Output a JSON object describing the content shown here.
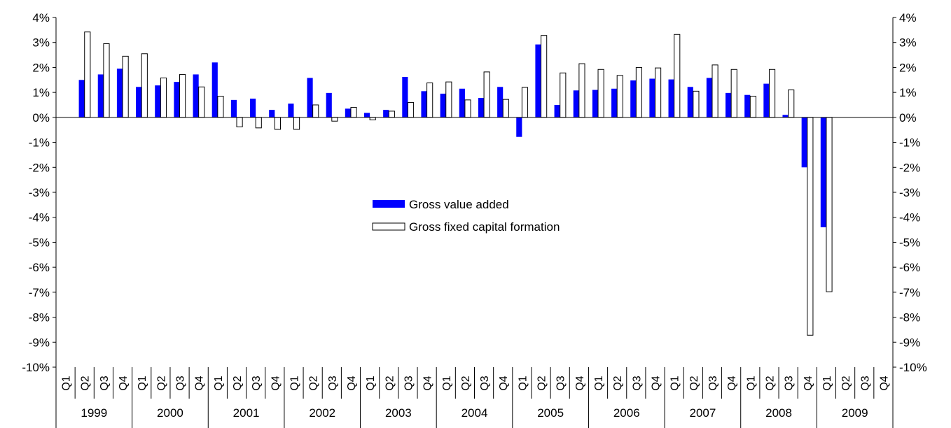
{
  "chart_data": {
    "type": "bar",
    "title": "",
    "xlabel": "",
    "ylabel": "",
    "ylim": [
      -10,
      4
    ],
    "y_ticks": [
      4,
      3,
      2,
      1,
      0,
      -1,
      -2,
      -3,
      -4,
      -5,
      -6,
      -7,
      -8,
      -9,
      -10
    ],
    "y_tick_labels": [
      "4%",
      "3%",
      "2%",
      "1%",
      "0%",
      "-1%",
      "-2%",
      "-3%",
      "-4%",
      "-5%",
      "-6%",
      "-7%",
      "-8%",
      "-9%",
      "-10%"
    ],
    "grid": false,
    "legend_position": "center",
    "years": [
      "1999",
      "2000",
      "2001",
      "2002",
      "2003",
      "2004",
      "2005",
      "2006",
      "2007",
      "2008",
      "2009"
    ],
    "quarters": [
      "Q1",
      "Q2",
      "Q3",
      "Q4"
    ],
    "series": [
      {
        "name": "Gross value added",
        "color": "#0000ff",
        "fill": "#0000ff",
        "values": [
          null,
          1.5,
          1.72,
          1.95,
          1.22,
          1.28,
          1.42,
          1.72,
          2.2,
          0.7,
          0.75,
          0.3,
          0.55,
          1.58,
          0.98,
          0.35,
          0.18,
          0.3,
          1.62,
          1.05,
          0.95,
          1.15,
          0.78,
          1.22,
          -0.78,
          2.92,
          0.5,
          1.08,
          1.1,
          1.15,
          1.48,
          1.55,
          1.52,
          1.22,
          1.58,
          0.98,
          0.9,
          1.35,
          0.1,
          -2.0,
          -4.4,
          null,
          null,
          null
        ]
      },
      {
        "name": "Gross fixed capital formation",
        "color": "#000000",
        "fill": "#ffffff",
        "values": [
          null,
          3.42,
          2.95,
          2.45,
          2.55,
          1.58,
          1.72,
          1.22,
          0.85,
          -0.38,
          -0.42,
          -0.48,
          -0.48,
          0.5,
          -0.15,
          0.4,
          -0.1,
          0.25,
          0.6,
          1.38,
          1.42,
          0.7,
          1.82,
          0.72,
          1.2,
          3.28,
          1.78,
          2.15,
          1.92,
          1.68,
          2.0,
          1.98,
          3.32,
          1.05,
          2.1,
          1.92,
          0.85,
          1.92,
          1.1,
          -8.72,
          -6.98,
          null,
          null,
          null
        ]
      }
    ]
  }
}
